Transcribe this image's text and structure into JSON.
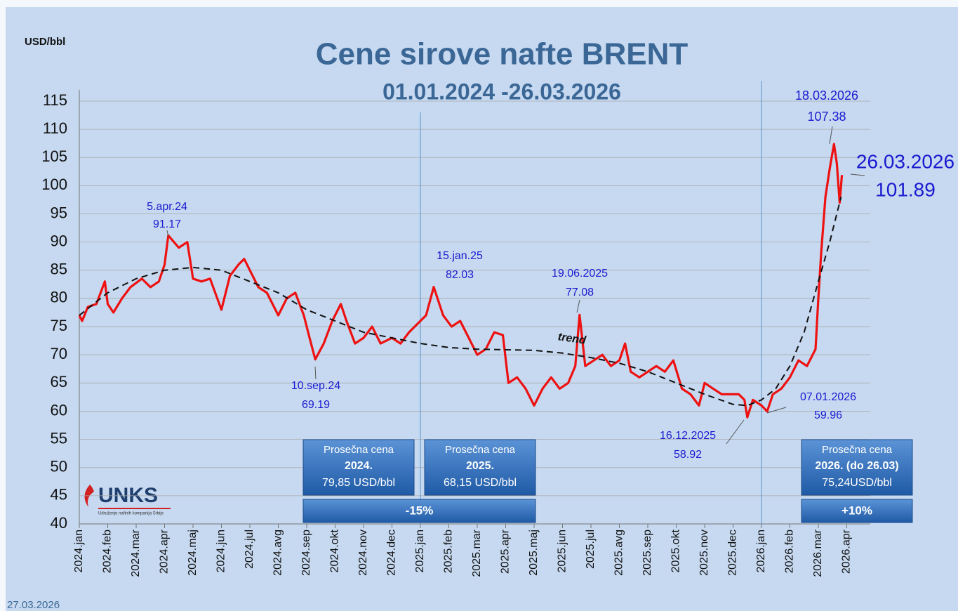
{
  "chart_data": {
    "type": "line",
    "title": "Cene sirove nafte BRENT",
    "subtitle": "01.01.2024 -26.03.2026",
    "y_label": "USD/bbl",
    "date_note": "27.03.2026",
    "logo": {
      "name": "UNKS",
      "tagline": "Udruženje naftnih kompanija Srbije"
    },
    "ylim": [
      40,
      117
    ],
    "yticks": [
      40,
      45,
      50,
      55,
      60,
      65,
      70,
      75,
      80,
      85,
      90,
      95,
      100,
      105,
      110,
      115
    ],
    "xlim": [
      0,
      27.8
    ],
    "xticks": [
      {
        "value": 0,
        "label": "2024.jan"
      },
      {
        "value": 1,
        "label": "2024.feb"
      },
      {
        "value": 2,
        "label": "2024.mar"
      },
      {
        "value": 3,
        "label": "2024.apr"
      },
      {
        "value": 4,
        "label": "2024.maj"
      },
      {
        "value": 5,
        "label": "2024.jun"
      },
      {
        "value": 6,
        "label": "2024.jul"
      },
      {
        "value": 7,
        "label": "2024.avg"
      },
      {
        "value": 8,
        "label": "2024.sep"
      },
      {
        "value": 9,
        "label": "2024.okt"
      },
      {
        "value": 10,
        "label": "2024.nov"
      },
      {
        "value": 11,
        "label": "2024.dec"
      },
      {
        "value": 12,
        "label": "2025.jan"
      },
      {
        "value": 13,
        "label": "2025.feb"
      },
      {
        "value": 14,
        "label": "2025.mar"
      },
      {
        "value": 15,
        "label": "2025.apr"
      },
      {
        "value": 16,
        "label": "2025.maj"
      },
      {
        "value": 17,
        "label": "2025.jun"
      },
      {
        "value": 18,
        "label": "2025.jul"
      },
      {
        "value": 19,
        "label": "2025.avg"
      },
      {
        "value": 20,
        "label": "2025.sep"
      },
      {
        "value": 21,
        "label": "2025.okt"
      },
      {
        "value": 22,
        "label": "2025.nov"
      },
      {
        "value": 23,
        "label": "2025.dec"
      },
      {
        "value": 24,
        "label": "2026.jan"
      },
      {
        "value": 25,
        "label": "2026.feb"
      },
      {
        "value": 26,
        "label": "2026.mar"
      },
      {
        "value": 27,
        "label": "2026.apr"
      }
    ],
    "grid": true,
    "year_lines": [
      12,
      24
    ],
    "series": [
      {
        "name": "BRENT",
        "color": "#ee1111",
        "x": [
          0,
          0.1,
          0.3,
          0.6,
          0.9,
          1.0,
          1.2,
          1.5,
          1.8,
          2.2,
          2.5,
          2.8,
          3.0,
          3.13,
          3.5,
          3.8,
          4.0,
          4.3,
          4.6,
          5.0,
          5.3,
          5.6,
          5.8,
          6.0,
          6.3,
          6.6,
          7.0,
          7.3,
          7.6,
          7.9,
          8.1,
          8.3,
          8.6,
          8.9,
          9.2,
          9.4,
          9.7,
          10.0,
          10.3,
          10.6,
          11.0,
          11.3,
          11.6,
          12.0,
          12.2,
          12.47,
          12.8,
          13.1,
          13.4,
          13.7,
          14.0,
          14.3,
          14.6,
          14.9,
          15.1,
          15.4,
          15.7,
          16.0,
          16.3,
          16.6,
          16.9,
          17.2,
          17.45,
          17.6,
          17.8,
          18.1,
          18.4,
          18.7,
          19.0,
          19.2,
          19.4,
          19.7,
          20.0,
          20.3,
          20.6,
          20.9,
          21.2,
          21.5,
          21.8,
          22.0,
          22.3,
          22.6,
          22.9,
          23.2,
          23.4,
          23.5,
          23.7,
          24.0,
          24.2,
          24.4,
          24.7,
          25.0,
          25.3,
          25.6,
          25.9,
          26.0,
          26.1,
          26.25,
          26.4,
          26.55,
          26.65,
          26.75,
          26.83
        ],
        "values": [
          77,
          76,
          78.5,
          79,
          83,
          79,
          77.5,
          80,
          82,
          83.5,
          82,
          83,
          86,
          91.17,
          89,
          90,
          83.5,
          83,
          83.5,
          78,
          84,
          86,
          87,
          85,
          82,
          81,
          77,
          80,
          81,
          77,
          73,
          69.19,
          72,
          76,
          79,
          76,
          72,
          73,
          75,
          72,
          73,
          72,
          74,
          76,
          77,
          82.03,
          77,
          75,
          76,
          73,
          70,
          71,
          74,
          73.5,
          65,
          66,
          64,
          61,
          64,
          66,
          64,
          65,
          68,
          77.08,
          68,
          69,
          70,
          68,
          69,
          72,
          67,
          66,
          67,
          68,
          67,
          69,
          64,
          63,
          61,
          65,
          64,
          63,
          63,
          63,
          62,
          58.92,
          62,
          61,
          59.96,
          63,
          64,
          66,
          69,
          68,
          71,
          80,
          88,
          98,
          103,
          107.38,
          104,
          97,
          101.89
        ]
      },
      {
        "name": "trend",
        "color": "#111111",
        "dashed": true,
        "x": [
          0,
          1,
          2,
          3,
          4,
          5,
          6,
          7,
          8,
          9,
          10,
          11,
          12,
          13,
          14,
          15,
          16,
          17,
          18,
          19,
          20,
          21,
          22,
          23,
          23.5,
          24,
          24.5,
          25,
          25.5,
          26,
          26.4,
          26.8
        ],
        "values": [
          77,
          81,
          83.5,
          85,
          85.5,
          85,
          83,
          81,
          78,
          76,
          74,
          73,
          72,
          71.3,
          71,
          70.9,
          70.8,
          70.3,
          69.5,
          68.5,
          67,
          65,
          63,
          61.2,
          61,
          62,
          64,
          68,
          74,
          83,
          90,
          98
        ]
      }
    ],
    "trend_label": "trend",
    "annotations": [
      {
        "date": "5.apr.24",
        "value": 91.17
      },
      {
        "date": "10.sep.24",
        "value": 69.19
      },
      {
        "date": "15.jan.25",
        "value": 82.03
      },
      {
        "date": "19.06.2025",
        "value": 77.08
      },
      {
        "date": "16.12.2025",
        "value": 58.92
      },
      {
        "date": "07.01.2026",
        "value": 59.96
      },
      {
        "date": "18.03.2026",
        "value": 107.38
      },
      {
        "date": "26.03.2026",
        "value": 101.89
      }
    ],
    "avg_boxes": [
      {
        "heading": "Prosečna cena",
        "year": "2024.",
        "price": "79,85 USD/bbl"
      },
      {
        "heading": "Prosečna cena",
        "year": "2025.",
        "price": "68,15 USD/bbl"
      },
      {
        "heading": "Prosečna cena",
        "year": "2026. (do 26.03)",
        "price": "75,24USD/bbl"
      }
    ],
    "changes": [
      "-15%",
      "+10%"
    ]
  }
}
